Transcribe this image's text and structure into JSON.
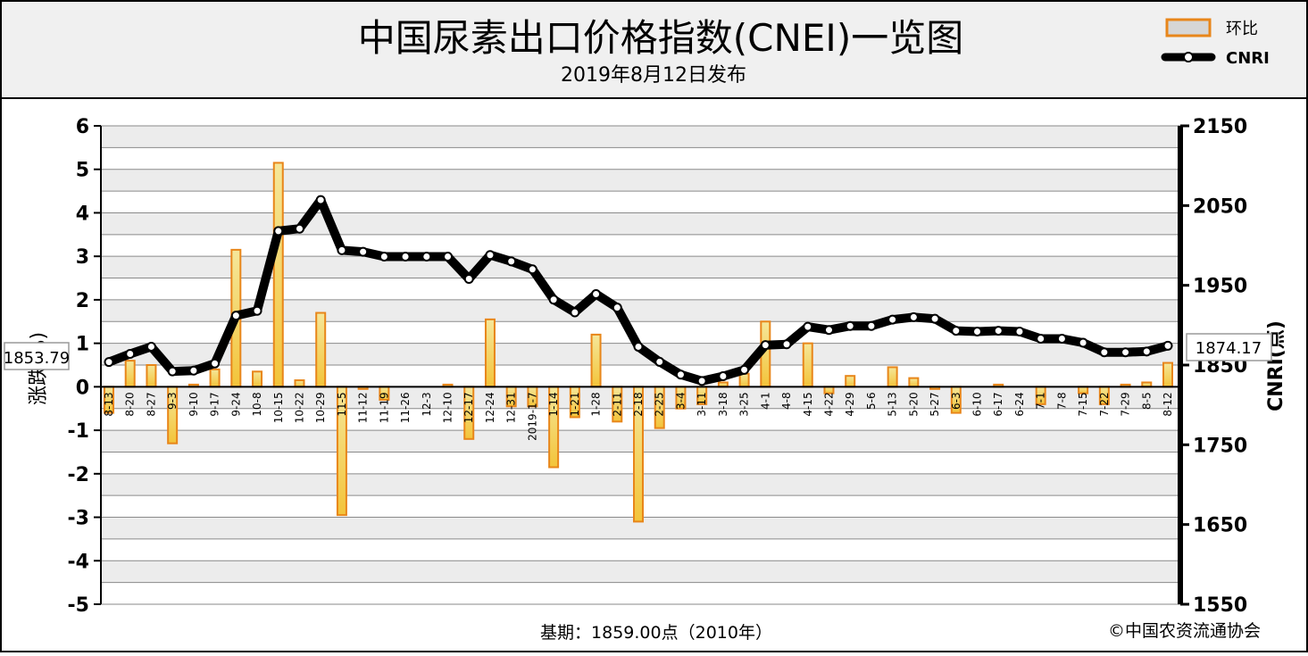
{
  "header": {
    "title": "中国尿素出口价格指数(CNEI)一览图",
    "subtitle": "2019年8月12日发布"
  },
  "legend": {
    "bar_label": "环比",
    "line_label": "CNRI"
  },
  "footer": {
    "base_period": "基期：1859.00点（2010年）",
    "copyright": "©中国农资流通协会"
  },
  "colors": {
    "bar_stroke": "#e8861a",
    "bar_fill_top": "#f5e79a",
    "bar_fill_bottom": "#f3c43a",
    "line": "#000000",
    "marker_fill": "#ffffff",
    "band": "#ececec"
  },
  "chart_data": {
    "type": "bar+line",
    "categories": [
      "8-13",
      "8-20",
      "8-27",
      "9-3",
      "9-10",
      "9-17",
      "9-24",
      "10-8",
      "10-15",
      "10-22",
      "10-29",
      "11-5",
      "11-12",
      "11-19",
      "11-26",
      "12-3",
      "12-10",
      "12-17",
      "12-24",
      "12-31",
      "2019-1-7",
      "1-14",
      "1-21",
      "1-28",
      "2-11",
      "2-18",
      "2-25",
      "3-4",
      "3-11",
      "3-18",
      "3-25",
      "4-1",
      "4-8",
      "4-15",
      "4-22",
      "4-29",
      "5-6",
      "5-13",
      "5-20",
      "5-27",
      "6-3",
      "6-10",
      "6-17",
      "6-24",
      "7-1",
      "7-8",
      "7-15",
      "7-22",
      "7-29",
      "8-5",
      "8-12"
    ],
    "series": [
      {
        "name": "环比",
        "type": "bar",
        "axis": "left",
        "values": [
          -0.6,
          0.6,
          0.5,
          -1.3,
          0.05,
          0.4,
          3.15,
          0.35,
          5.15,
          0.15,
          1.7,
          -2.95,
          -0.05,
          -0.3,
          0,
          0,
          0.05,
          -1.2,
          1.55,
          -0.45,
          -0.45,
          -1.85,
          -0.7,
          1.2,
          -0.8,
          -3.1,
          -0.95,
          -0.5,
          -0.4,
          0.1,
          0.3,
          1.5,
          0,
          1,
          -0.15,
          0.25,
          0,
          0.45,
          0.2,
          -0.05,
          -0.6,
          0,
          0.05,
          0,
          -0.4,
          0,
          -0.15,
          -0.4,
          0.05,
          0.1,
          0.55
        ]
      },
      {
        "name": "CNRI",
        "type": "line",
        "axis": "right",
        "values": [
          1853.79,
          1864,
          1873,
          1842,
          1843,
          1852,
          1912,
          1918,
          2018,
          2021,
          2057,
          1994,
          1992,
          1986,
          1986,
          1986,
          1986,
          1958,
          1988,
          1980,
          1970,
          1932,
          1916,
          1939,
          1922,
          1873,
          1854,
          1838,
          1830,
          1836,
          1844,
          1875,
          1876,
          1898,
          1894,
          1899,
          1899,
          1907,
          1910,
          1908,
          1893,
          1892,
          1893,
          1892,
          1883,
          1883,
          1878,
          1866,
          1866,
          1867,
          1874.17
        ]
      }
    ],
    "left_axis": {
      "label": "涨跌(%)",
      "range": [
        -5,
        6
      ],
      "ticks": [
        "6",
        "5",
        "4",
        "3",
        "2",
        "1",
        "0",
        "-1",
        "-2",
        "-3",
        "-4",
        "-5"
      ]
    },
    "right_axis": {
      "label": "CNRI(点)",
      "range": [
        1550,
        2150
      ],
      "ticks": [
        "2150",
        "2050",
        "1950",
        "1850",
        "1750",
        "1650",
        "1550"
      ]
    },
    "start_label": "1853.79",
    "end_label": "1874.17",
    "legend_position": "top-right"
  }
}
